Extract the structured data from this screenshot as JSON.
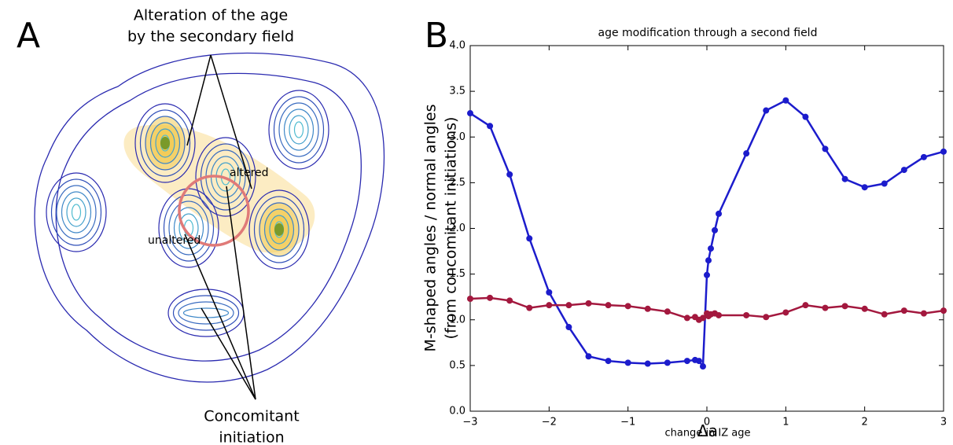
{
  "panel_a": {
    "label": "A",
    "top_note": [
      "Alteration of the age",
      "by the secondary field"
    ],
    "altered": "altered",
    "unaltered": "unaltered",
    "bottom_note": [
      "Concomitant",
      "initiation"
    ]
  },
  "chart_data": {
    "type": "line",
    "panel_label": "B",
    "title": "age modification through a second field",
    "x_label": "change in IZ age",
    "x_symbol": "Δa",
    "y_label": [
      "M-shaped angles / normal angles",
      "(from concomitant initiations)"
    ],
    "x": [
      -3,
      -2.75,
      -2.5,
      -2.25,
      -2,
      -1.75,
      -1.5,
      -1.25,
      -1,
      -0.75,
      -0.5,
      -0.25,
      -0.15,
      -0.1,
      -0.05,
      0,
      0.02,
      0.05,
      0.1,
      0.15,
      0.5,
      0.75,
      1,
      1.25,
      1.5,
      1.75,
      2,
      2.25,
      2.5,
      2.75,
      3
    ],
    "series": [
      {
        "color": "#1c1ccc",
        "values": [
          3.26,
          3.12,
          2.59,
          1.89,
          1.3,
          0.92,
          0.6,
          0.55,
          0.53,
          0.52,
          0.53,
          0.55,
          0.56,
          0.55,
          0.49,
          1.49,
          1.65,
          1.78,
          1.98,
          2.16,
          2.82,
          3.29,
          3.4,
          3.22,
          2.87,
          2.54,
          2.45,
          2.49,
          2.64,
          2.78,
          2.84
        ]
      },
      {
        "color": "#a3183e",
        "values": [
          1.23,
          1.24,
          1.21,
          1.13,
          1.16,
          1.16,
          1.18,
          1.16,
          1.15,
          1.12,
          1.09,
          1.02,
          1.03,
          1.0,
          1.02,
          1.07,
          1.04,
          1.06,
          1.07,
          1.05,
          1.05,
          1.03,
          1.08,
          1.16,
          1.13,
          1.15,
          1.12,
          1.06,
          1.1,
          1.07,
          1.1
        ]
      }
    ],
    "xlim": [
      -3,
      3
    ],
    "ylim": [
      0,
      4
    ],
    "xticks": [
      {
        "value": -3,
        "label": "−3"
      },
      {
        "value": -2,
        "label": "−2"
      },
      {
        "value": -1,
        "label": "−1"
      },
      0,
      1,
      2,
      3
    ],
    "yticks": [
      {
        "value": 0,
        "label": "0.0"
      },
      {
        "value": 0.5,
        "label": "0.5"
      },
      {
        "value": 1,
        "label": "1.0"
      },
      {
        "value": 1.5,
        "label": "1.5"
      },
      {
        "value": 2,
        "label": "2.0"
      },
      {
        "value": 2.5,
        "label": "2.5"
      },
      {
        "value": 3,
        "label": "3.0"
      },
      {
        "value": 3.5,
        "label": "3.5"
      },
      {
        "value": 4,
        "label": "4.0"
      }
    ]
  }
}
